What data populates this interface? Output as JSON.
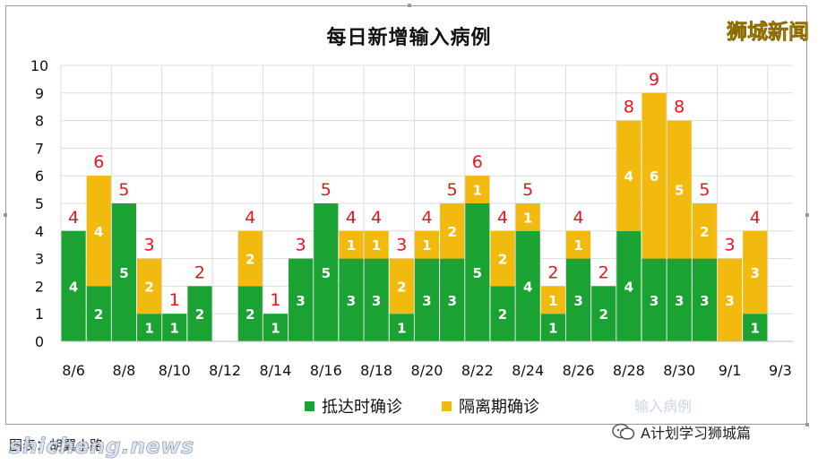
{
  "brand_top": "狮城新闻",
  "legend_ghost": "输入病例",
  "wechat_account": "A计划学习狮城篇",
  "caption": "图表：胡翼小路",
  "watermark": "shicheng.news",
  "colors": {
    "arrival": "#1aa333",
    "quarantine": "#f2b90f",
    "total_label": "#e8141e",
    "grid": "#dcdcdc"
  },
  "chart_data": {
    "type": "bar",
    "stacked": true,
    "title": "每日新增输入病例",
    "xlabel": "",
    "ylabel": "",
    "ylim": [
      0,
      10
    ],
    "yticks": [
      0,
      1,
      2,
      3,
      4,
      5,
      6,
      7,
      8,
      9,
      10
    ],
    "grid": true,
    "legend_position": "bottom",
    "categories": [
      "8/6",
      "8/7",
      "8/8",
      "8/9",
      "8/10",
      "8/11",
      "8/12",
      "8/13",
      "8/14",
      "8/15",
      "8/16",
      "8/17",
      "8/18",
      "8/19",
      "8/20",
      "8/21",
      "8/22",
      "8/23",
      "8/24",
      "8/25",
      "8/26",
      "8/27",
      "8/28",
      "8/29",
      "8/30",
      "8/31",
      "9/1",
      "9/2",
      "9/3"
    ],
    "x_tick_labels": [
      "8/6",
      "8/8",
      "8/10",
      "8/12",
      "8/14",
      "8/16",
      "8/18",
      "8/20",
      "8/22",
      "8/24",
      "8/26",
      "8/28",
      "8/30",
      "9/1",
      "9/3"
    ],
    "series": [
      {
        "name": "抵达时确诊",
        "color": "#1aa333",
        "values": [
          4,
          2,
          5,
          1,
          1,
          2,
          0,
          2,
          1,
          3,
          5,
          3,
          3,
          1,
          3,
          3,
          5,
          2,
          4,
          1,
          3,
          2,
          4,
          3,
          3,
          3,
          0,
          1,
          0
        ]
      },
      {
        "name": "隔离期确诊",
        "color": "#f2b90f",
        "values": [
          0,
          4,
          0,
          2,
          0,
          0,
          0,
          2,
          0,
          0,
          0,
          1,
          1,
          2,
          1,
          2,
          1,
          2,
          1,
          1,
          1,
          0,
          4,
          6,
          5,
          2,
          3,
          3,
          0
        ]
      }
    ],
    "totals": [
      4,
      6,
      5,
      3,
      1,
      2,
      null,
      4,
      1,
      3,
      5,
      4,
      4,
      3,
      4,
      5,
      6,
      4,
      5,
      2,
      4,
      2,
      8,
      9,
      8,
      5,
      3,
      4,
      null
    ]
  }
}
